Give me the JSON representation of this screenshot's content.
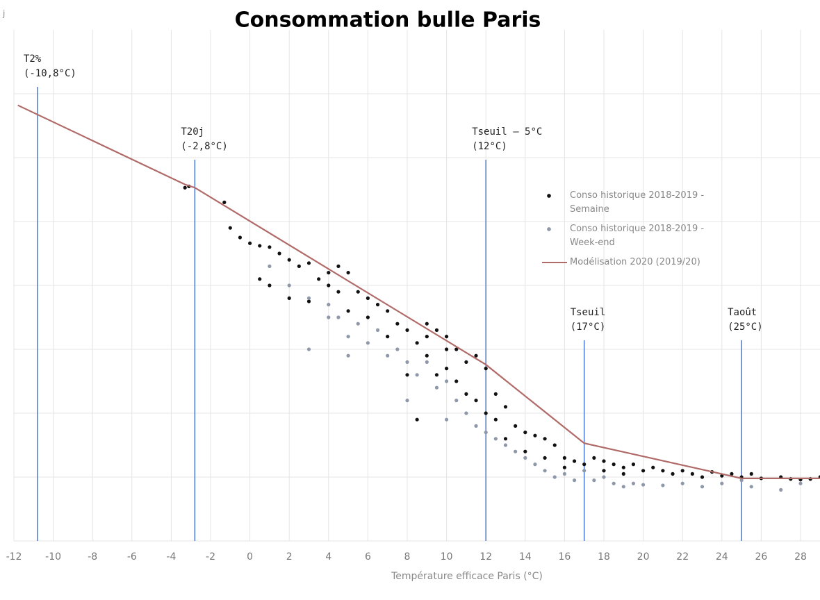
{
  "chart_data": {
    "type": "scatter",
    "title": "Consommation bulle Paris",
    "ylabel": "j",
    "xlabel": "Température efficace Paris (°C)",
    "xlim": [
      -12,
      29
    ],
    "xticks": [
      -12,
      -10,
      -8,
      -6,
      -4,
      -2,
      0,
      2,
      4,
      6,
      8,
      10,
      12,
      14,
      16,
      18,
      20,
      22,
      24,
      26,
      28
    ],
    "ylim": [
      0,
      8
    ],
    "yticks": [
      0,
      1,
      2,
      3,
      4,
      5,
      6,
      7
    ],
    "grid": true,
    "legend": "right",
    "series": [
      {
        "name": "Conso historique 2018-2019 - Semaine",
        "type": "scatter",
        "color": "#111111",
        "x": [
          -3.3,
          -3.1,
          -1.3,
          -1,
          -0.5,
          0,
          0.5,
          1,
          0.5,
          1,
          1.5,
          2,
          2,
          2.5,
          3,
          3,
          3.5,
          4,
          4,
          4.5,
          5,
          5,
          5.5,
          6,
          6,
          6.5,
          7,
          7,
          7.5,
          8,
          8,
          8.5,
          8.5,
          9,
          9,
          9.5,
          9.5,
          10,
          10,
          10.5,
          10.5,
          11,
          11,
          11.5,
          11.5,
          12,
          12,
          12.5,
          12.5,
          13,
          13,
          13.5,
          14,
          14,
          14.5,
          15,
          15,
          15.5,
          16,
          16,
          16.5,
          17,
          17.5,
          18,
          18,
          18.5,
          19,
          19,
          19.5,
          20,
          20.5,
          21,
          21.5,
          22,
          22.5,
          23,
          23.5,
          24,
          24.5,
          25,
          25.5,
          26,
          27,
          27.5,
          28,
          28.5,
          29,
          4.5,
          10,
          9
        ],
        "values": [
          5.53,
          5.55,
          5.3,
          4.9,
          4.75,
          4.66,
          4.62,
          4.6,
          4.1,
          4.0,
          4.5,
          4.4,
          3.8,
          4.3,
          4.35,
          3.75,
          4.1,
          4.2,
          4.0,
          3.9,
          4.2,
          3.6,
          3.9,
          3.8,
          3.5,
          3.7,
          3.6,
          3.2,
          3.4,
          3.3,
          2.6,
          3.1,
          1.9,
          3.2,
          2.9,
          3.3,
          2.6,
          3.0,
          2.7,
          3.0,
          2.5,
          2.8,
          2.3,
          2.9,
          2.2,
          2.7,
          2.0,
          2.3,
          1.9,
          2.1,
          1.6,
          1.8,
          1.7,
          1.4,
          1.65,
          1.6,
          1.3,
          1.5,
          1.3,
          1.15,
          1.25,
          1.2,
          1.3,
          1.25,
          1.1,
          1.2,
          1.15,
          1.05,
          1.2,
          1.1,
          1.15,
          1.1,
          1.05,
          1.1,
          1.05,
          1.0,
          1.08,
          1.02,
          1.05,
          1.0,
          1.05,
          0.98,
          1.0,
          0.97,
          0.96,
          0.97,
          1.0,
          4.3,
          3.2,
          3.4
        ]
      },
      {
        "name": "Conso historique 2018-2019 - Week-end",
        "type": "scatter",
        "color": "#8e98a8",
        "x": [
          1,
          2,
          3,
          4,
          4.5,
          5,
          5.5,
          6,
          6.5,
          7,
          7.5,
          8,
          8,
          8.5,
          9,
          9.5,
          10,
          10,
          10.5,
          11,
          11.5,
          12,
          12.5,
          13,
          13.5,
          14,
          14.5,
          15,
          15.5,
          16,
          16.5,
          17,
          17.5,
          18,
          18.5,
          19,
          19.5,
          20,
          21,
          22,
          23,
          24,
          25,
          25.5,
          27,
          28,
          3,
          4,
          5
        ],
        "values": [
          4.3,
          4.0,
          3.8,
          3.7,
          3.5,
          3.2,
          3.4,
          3.1,
          3.3,
          2.9,
          3.0,
          2.8,
          2.2,
          2.6,
          2.8,
          2.4,
          2.5,
          1.9,
          2.2,
          2.0,
          1.8,
          1.7,
          1.6,
          1.5,
          1.4,
          1.3,
          1.2,
          1.1,
          1.0,
          1.05,
          0.95,
          1.1,
          0.95,
          1.0,
          0.9,
          0.85,
          0.9,
          0.88,
          0.87,
          0.9,
          0.85,
          0.9,
          0.95,
          0.85,
          0.8,
          0.9,
          3.0,
          3.5,
          2.9
        ]
      },
      {
        "name": "Modélisation 2020 (2019/20)",
        "type": "line",
        "color": "#b06a68",
        "x": [
          -11.8,
          -3.3,
          -2.8,
          12,
          17,
          25,
          29
        ],
        "values": [
          6.82,
          5.58,
          5.53,
          2.76,
          1.53,
          0.98,
          0.98
        ]
      }
    ],
    "annotations": [
      {
        "x": -10.8,
        "lines": [
          "T2%",
          "(-10,8°C)"
        ]
      },
      {
        "x": -2.8,
        "lines": [
          "T20j",
          "(-2,8°C)"
        ]
      },
      {
        "x": 12,
        "lines": [
          "Tseuil – 5°C",
          "(12°C)"
        ]
      },
      {
        "x": 17,
        "lines": [
          "Tseuil",
          "(17°C)"
        ]
      },
      {
        "x": 25,
        "lines": [
          "Taoût",
          "(25°C)"
        ]
      }
    ]
  }
}
